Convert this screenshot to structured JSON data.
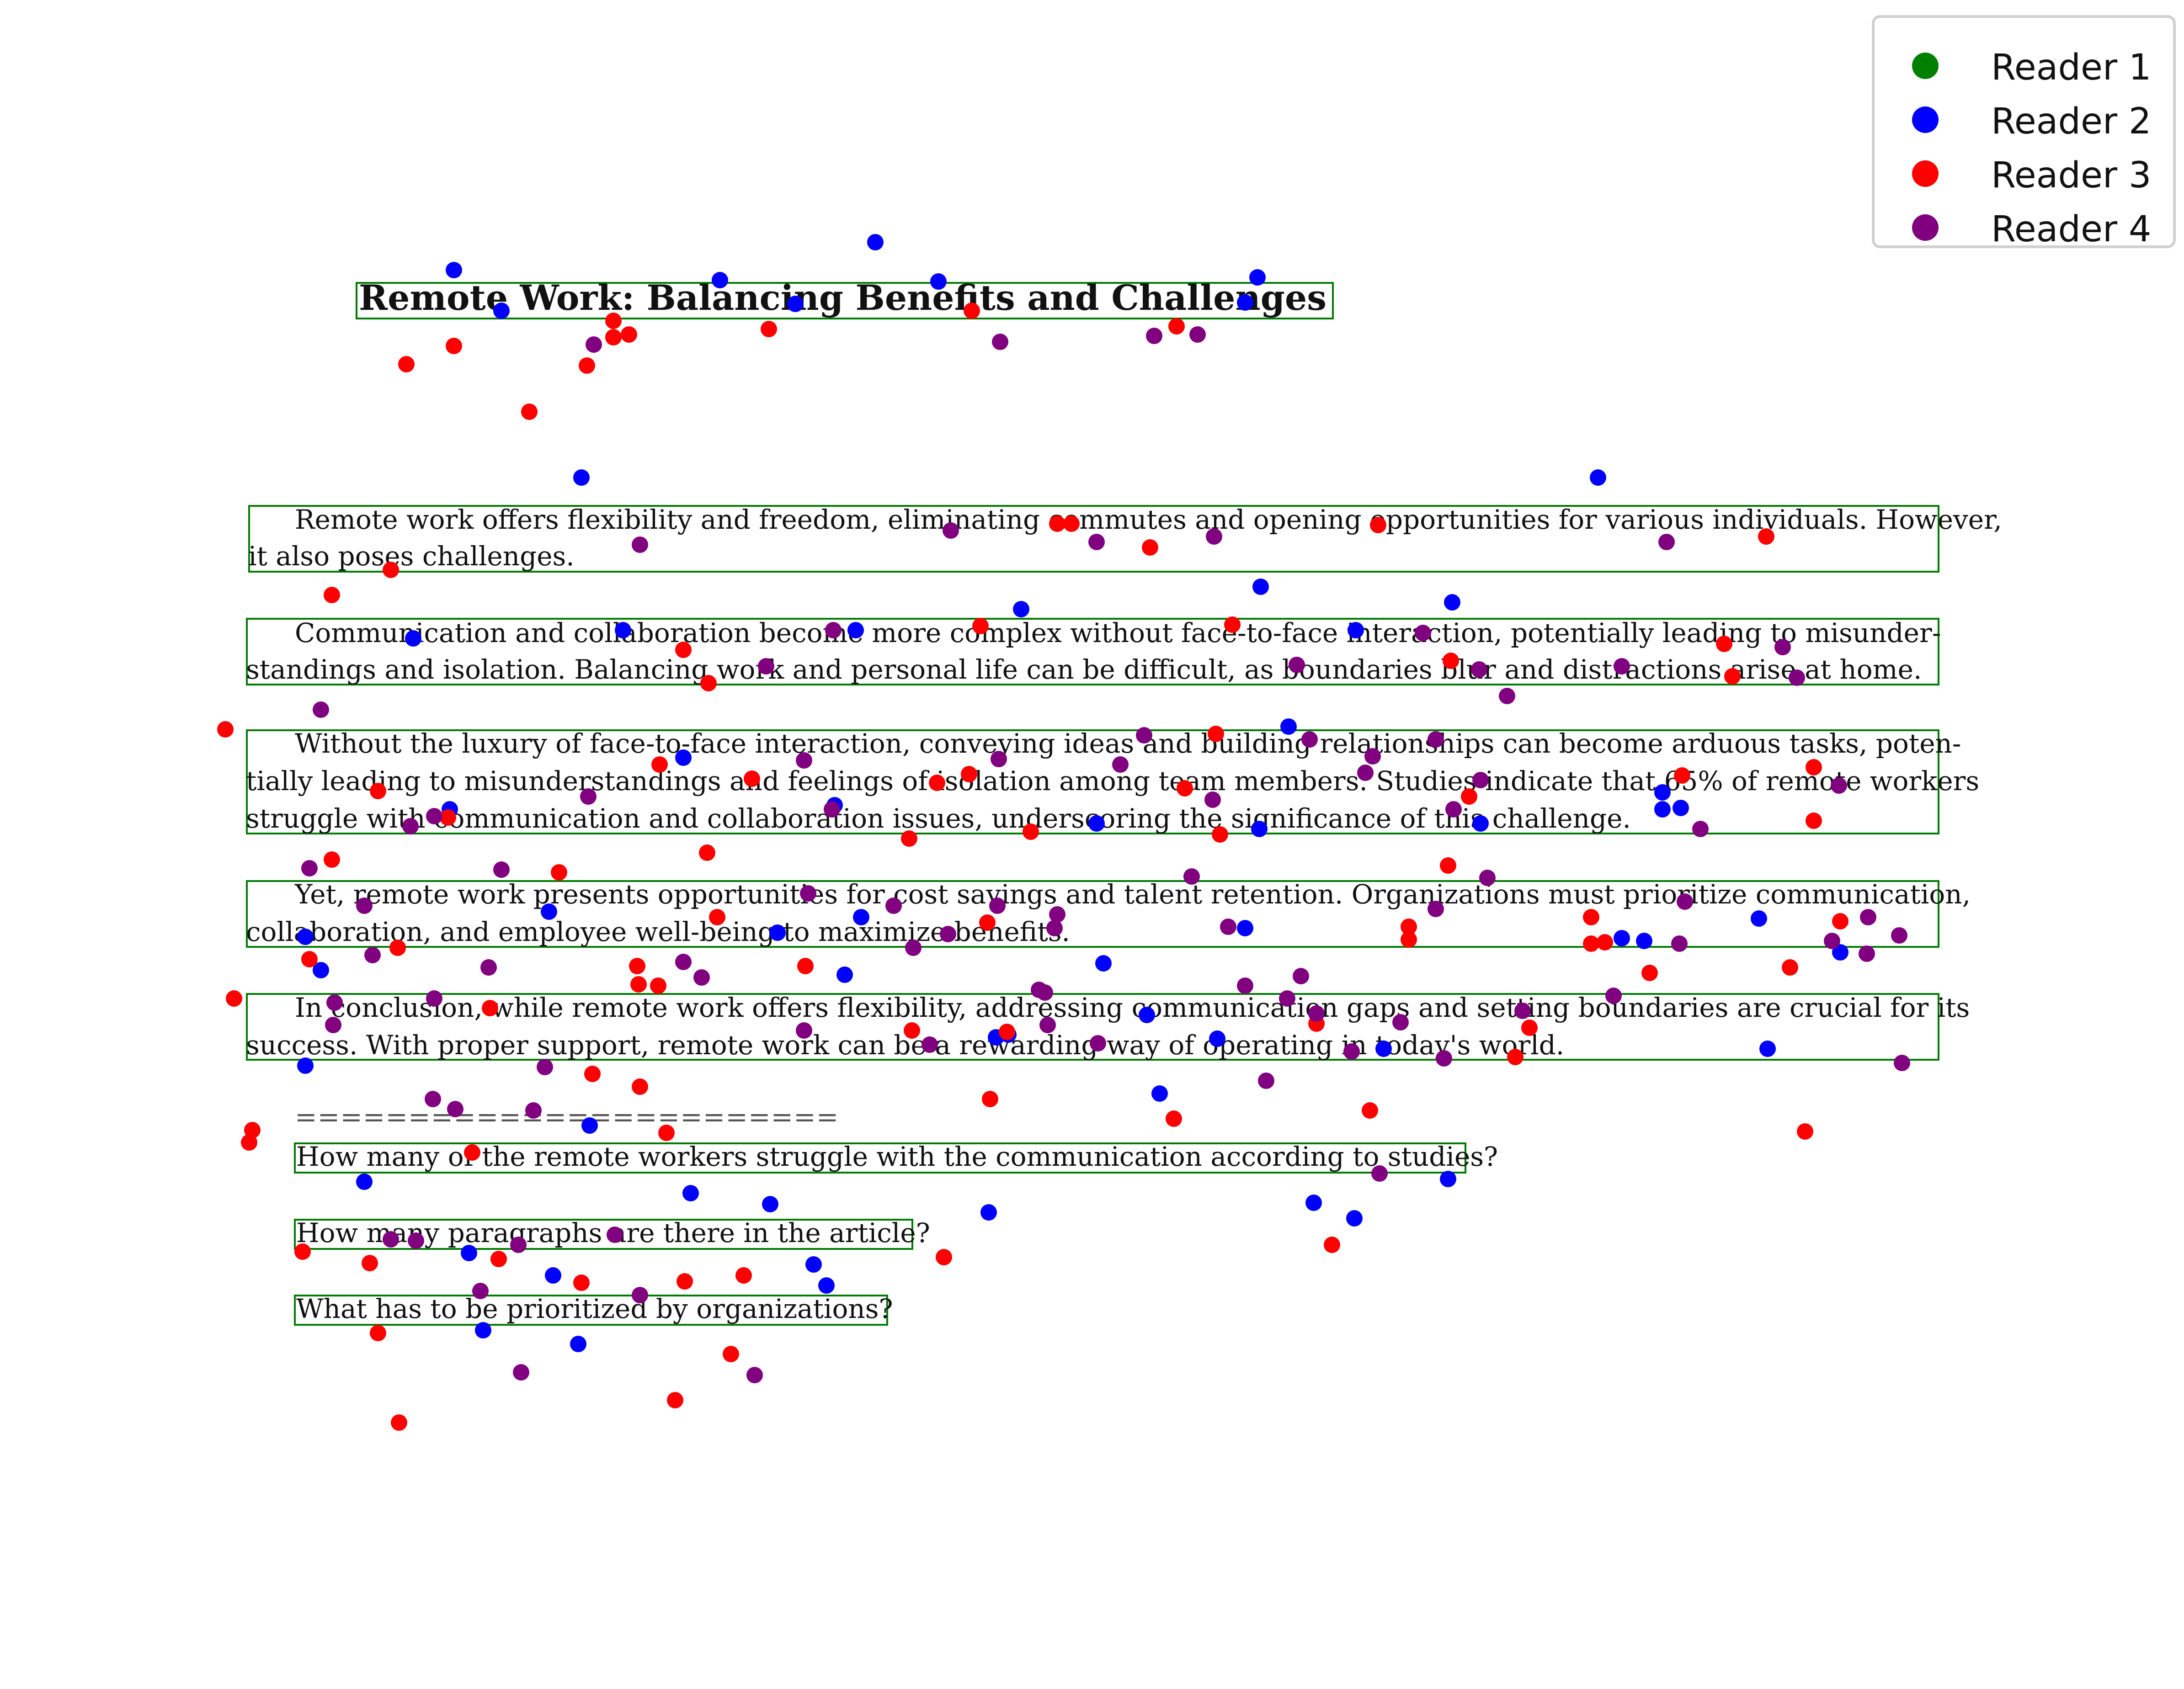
{
  "article": {
    "title": "Remote Work: Balancing Benefits and Challenges",
    "paragraphs": [
      [
        "Remote work offers flexibility and freedom, eliminating commutes and opening opportunities for various individuals. However,",
        "it also poses challenges."
      ],
      [
        "Communication and collaboration become more complex without face-to-face interaction, potentially leading to misunder-",
        "standings and isolation. Balancing work and personal life can be difficult, as boundaries blur and distractions arise at home."
      ],
      [
        "Without the luxury of face-to-face interaction, conveying ideas and building relationships can become arduous tasks, poten-",
        "tially leading to misunderstandings and feelings of isolation among team members. Studies indicate that 65% of remote workers",
        "struggle with communication and collaboration issues, underscoring the significance of this challenge."
      ],
      [
        "Yet, remote work presents opportunities for cost savings and talent retention. Organizations must prioritize communication,",
        "collaboration, and employee well-being to maximize benefits."
      ],
      [
        "In conclusion, while remote work offers flexibility, addressing communication gaps and setting boundaries are crucial for its",
        "success. With proper support, remote work can be a rewarding way of operating in today's world."
      ]
    ],
    "separator": "========================",
    "questions": [
      "How many of the remote workers struggle with the communication according to studies?",
      "How many paragraphs are there in the article?",
      "What has to be prioritized by organizations?"
    ]
  },
  "legend": [
    {
      "label": "Reader 1",
      "color": "#008000"
    },
    {
      "label": "Reader 2",
      "color": "#0000ff"
    },
    {
      "label": "Reader 3",
      "color": "#ff0000"
    },
    {
      "label": "Reader 4",
      "color": "#800080"
    }
  ],
  "colors": {
    "box_outline": "#007a00"
  }
}
